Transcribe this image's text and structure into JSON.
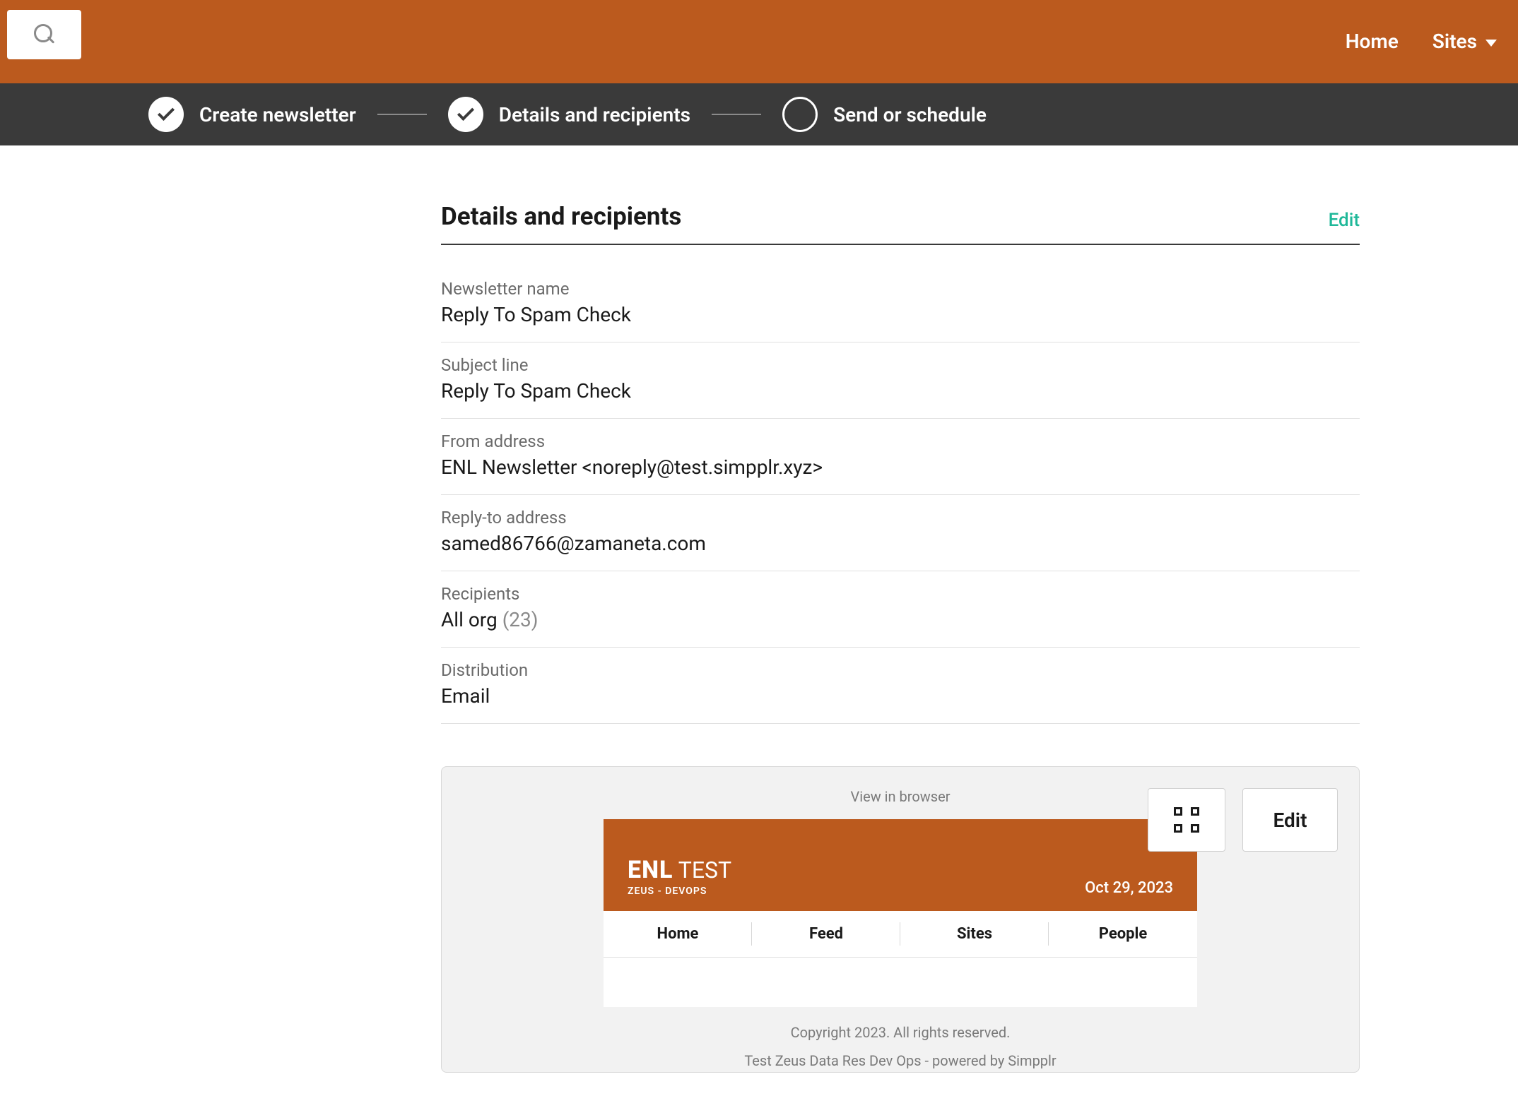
{
  "topnav": {
    "home": "Home",
    "sites": "Sites"
  },
  "steps": {
    "s1": "Create newsletter",
    "s2": "Details and recipients",
    "s3": "Send or schedule"
  },
  "section": {
    "title": "Details and recipients",
    "edit": "Edit"
  },
  "fields": {
    "newsletter_name_label": "Newsletter name",
    "newsletter_name_value": "Reply To Spam Check",
    "subject_label": "Subject line",
    "subject_value": "Reply To Spam Check",
    "from_label": "From address",
    "from_value": "ENL Newsletter <noreply@test.simpplr.xyz>",
    "replyto_label": "Reply-to address",
    "replyto_value": "samed86766@zamaneta.com",
    "recipients_label": "Recipients",
    "recipients_value": "All org ",
    "recipients_count": "(23)",
    "distribution_label": "Distribution",
    "distribution_value": "Email"
  },
  "preview": {
    "view_in_browser": "View in browser",
    "edit": "Edit",
    "brand_bold": "ENL",
    "brand_rest": " TEST",
    "brand_sub": "ZEUS - DEVOPS",
    "date": "Oct 29, 2023",
    "nav": {
      "home": "Home",
      "feed": "Feed",
      "sites": "Sites",
      "people": "People"
    },
    "footer1": "Copyright 2023. All rights reserved.",
    "footer2": "Test Zeus Data Res Dev Ops - powered by Simpplr"
  }
}
